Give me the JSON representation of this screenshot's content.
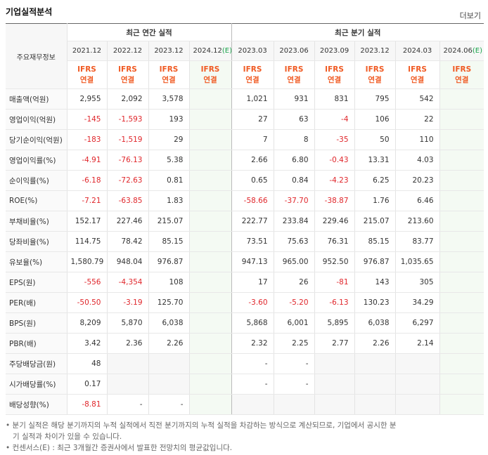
{
  "header": {
    "title": "기업실적분석",
    "more": "더보기"
  },
  "table": {
    "corner": "주요재무정보",
    "groups": [
      {
        "label": "최근 연간 실적",
        "span": 4
      },
      {
        "label": "최근 분기 실적",
        "span": 6
      }
    ],
    "periods": [
      {
        "date": "2021.12"
      },
      {
        "date": "2022.12"
      },
      {
        "date": "2023.12"
      },
      {
        "date": "2024.12",
        "estimate": "(E)"
      },
      {
        "date": "2023.03"
      },
      {
        "date": "2023.06"
      },
      {
        "date": "2023.09"
      },
      {
        "date": "2023.12"
      },
      {
        "date": "2024.03"
      },
      {
        "date": "2024.06",
        "estimate": "(E)"
      }
    ],
    "standards": [
      [
        "IFRS",
        "연결"
      ],
      [
        "IFRS",
        "연결"
      ],
      [
        "IFRS",
        "연결"
      ],
      [
        "IFRS",
        "연결"
      ],
      [
        "IFRS",
        "연결"
      ],
      [
        "IFRS",
        "연결"
      ],
      [
        "IFRS",
        "연결"
      ],
      [
        "IFRS",
        "연결"
      ],
      [
        "IFRS",
        "연결"
      ],
      [
        "IFRS",
        "연결"
      ]
    ],
    "rows": [
      {
        "label": "매출액(억원)",
        "values": [
          "2,955",
          "2,092",
          "3,578",
          null,
          "1,021",
          "931",
          "831",
          "795",
          "542",
          null
        ]
      },
      {
        "label": "영업이익(억원)",
        "values": [
          "-145",
          "-1,593",
          "193",
          null,
          "27",
          "63",
          "-4",
          "106",
          "22",
          null
        ]
      },
      {
        "label": "당기순이익(억원)",
        "values": [
          "-183",
          "-1,519",
          "29",
          null,
          "7",
          "8",
          "-35",
          "50",
          "110",
          null
        ]
      },
      {
        "label": "영업이익률(%)",
        "values": [
          "-4.91",
          "-76.13",
          "5.38",
          null,
          "2.66",
          "6.80",
          "-0.43",
          "13.31",
          "4.03",
          null
        ]
      },
      {
        "label": "순이익률(%)",
        "values": [
          "-6.18",
          "-72.63",
          "0.81",
          null,
          "0.65",
          "0.84",
          "-4.23",
          "6.25",
          "20.23",
          null
        ]
      },
      {
        "label": "ROE(%)",
        "values": [
          "-7.21",
          "-63.85",
          "1.83",
          null,
          "-58.66",
          "-37.70",
          "-38.87",
          "1.76",
          "6.46",
          null
        ]
      },
      {
        "label": "부채비율(%)",
        "values": [
          "152.17",
          "227.46",
          "215.07",
          null,
          "222.77",
          "233.84",
          "229.46",
          "215.07",
          "213.60",
          null
        ]
      },
      {
        "label": "당좌비율(%)",
        "values": [
          "114.75",
          "78.42",
          "85.15",
          null,
          "73.51",
          "75.63",
          "76.31",
          "85.15",
          "83.77",
          null
        ]
      },
      {
        "label": "유보율(%)",
        "values": [
          "1,580.79",
          "948.04",
          "976.87",
          null,
          "947.13",
          "965.00",
          "952.50",
          "976.87",
          "1,035.65",
          null
        ]
      },
      {
        "label": "EPS(원)",
        "values": [
          "-556",
          "-4,354",
          "108",
          null,
          "17",
          "26",
          "-81",
          "143",
          "305",
          null
        ]
      },
      {
        "label": "PER(배)",
        "values": [
          "-50.50",
          "-3.19",
          "125.70",
          null,
          "-3.60",
          "-5.20",
          "-6.13",
          "130.23",
          "34.29",
          null
        ]
      },
      {
        "label": "BPS(원)",
        "values": [
          "8,209",
          "5,870",
          "6,038",
          null,
          "5,868",
          "6,001",
          "5,895",
          "6,038",
          "6,297",
          null
        ]
      },
      {
        "label": "PBR(배)",
        "values": [
          "3.42",
          "2.36",
          "2.26",
          null,
          "2.32",
          "2.25",
          "2.77",
          "2.26",
          "2.14",
          null
        ]
      },
      {
        "label": "주당배당금(원)",
        "values": [
          "48",
          null,
          null,
          null,
          "-",
          "-",
          null,
          null,
          null,
          null
        ]
      },
      {
        "label": "시가배당률(%)",
        "values": [
          "0.17",
          null,
          null,
          null,
          "-",
          "-",
          null,
          null,
          null,
          null
        ]
      },
      {
        "label": "배당성향(%)",
        "values": [
          "-8.81",
          "-",
          "-",
          null,
          null,
          null,
          null,
          null,
          null,
          null
        ]
      }
    ]
  },
  "notes": [
    "분기 실적은 해당 분기까지의 누적 실적에서 직전 분기까지의 누적 실적을 차감하는 방식으로 계산되므로, 기업에서 공시한 분기 실적과 차이가 있을 수 있습니다.",
    "컨센서스(E) : 최근 3개월간 증권사에서 발표한 전망치의 평균값입니다."
  ]
}
